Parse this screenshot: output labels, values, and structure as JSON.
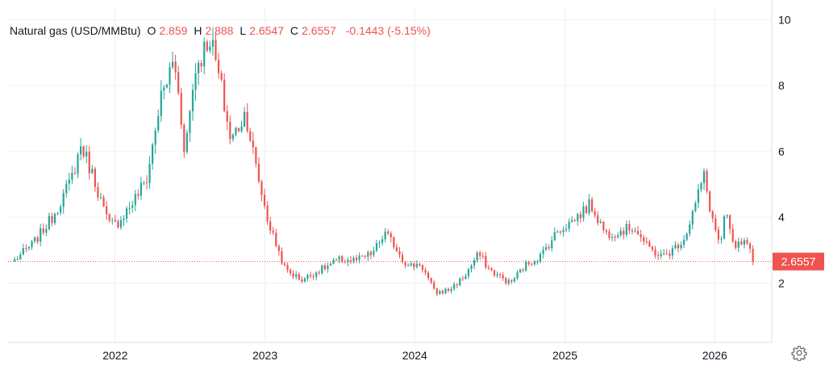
{
  "legend": {
    "title": "Natural gas (USD/MMBtu)",
    "open_label": "O",
    "open": "2.859",
    "high_label": "H",
    "high": "2.888",
    "low_label": "L",
    "low": "2.6547",
    "close_label": "C",
    "close": "2.6557",
    "change": "-0.1443 (-5.15%)"
  },
  "price_label": "2.6557",
  "colors": {
    "up": "#26a69a",
    "down": "#ef5350",
    "grid": "#eef0f3",
    "text": "#131722"
  },
  "icons": {
    "settings": "gear-icon"
  },
  "chart_data": {
    "type": "candlestick",
    "title": "Natural gas (USD/MMBtu)",
    "current_price": 2.6557,
    "xlim": [
      "2021-04-15",
      "2026-05-20"
    ],
    "x_ticks": [
      "2022",
      "2023",
      "2024",
      "2025",
      "2026"
    ],
    "y_ticks": [
      2,
      4,
      6,
      8,
      10
    ],
    "ylim": [
      0.2,
      10.35
    ],
    "grid": true,
    "anchors": [
      [
        "2021-05-01",
        2.7
      ],
      [
        "2021-06-15",
        3.2
      ],
      [
        "2021-08-01",
        4.0
      ],
      [
        "2021-09-15",
        5.1
      ],
      [
        "2021-10-10",
        6.2
      ],
      [
        "2021-11-10",
        5.2
      ],
      [
        "2021-12-15",
        3.8
      ],
      [
        "2022-01-05",
        3.8
      ],
      [
        "2022-02-15",
        4.5
      ],
      [
        "2022-03-20",
        5.2
      ],
      [
        "2022-04-20",
        7.5
      ],
      [
        "2022-05-25",
        8.8
      ],
      [
        "2022-06-20",
        6.0
      ],
      [
        "2022-07-15",
        8.5
      ],
      [
        "2022-08-20",
        9.5
      ],
      [
        "2022-09-15",
        8.0
      ],
      [
        "2022-10-10",
        6.3
      ],
      [
        "2022-11-15",
        7.2
      ],
      [
        "2022-12-10",
        5.5
      ],
      [
        "2023-01-10",
        3.8
      ],
      [
        "2023-02-20",
        2.4
      ],
      [
        "2023-04-01",
        2.1
      ],
      [
        "2023-05-15",
        2.4
      ],
      [
        "2023-07-01",
        2.7
      ],
      [
        "2023-08-15",
        2.7
      ],
      [
        "2023-09-20",
        2.9
      ],
      [
        "2023-10-20",
        3.5
      ],
      [
        "2023-11-10",
        3.2
      ],
      [
        "2023-12-15",
        2.5
      ],
      [
        "2024-01-15",
        2.6
      ],
      [
        "2024-02-20",
        1.7
      ],
      [
        "2024-03-25",
        1.8
      ],
      [
        "2024-05-01",
        2.2
      ],
      [
        "2024-06-05",
        2.9
      ],
      [
        "2024-07-01",
        2.4
      ],
      [
        "2024-08-20",
        2.0
      ],
      [
        "2024-10-01",
        2.6
      ],
      [
        "2024-11-01",
        2.8
      ],
      [
        "2024-12-15",
        3.6
      ],
      [
        "2025-01-20",
        3.9
      ],
      [
        "2025-03-05",
        4.4
      ],
      [
        "2025-04-10",
        3.5
      ],
      [
        "2025-05-20",
        3.6
      ],
      [
        "2025-06-20",
        3.7
      ],
      [
        "2025-07-20",
        3.1
      ],
      [
        "2025-08-25",
        2.8
      ],
      [
        "2025-09-20",
        3.0
      ],
      [
        "2025-10-20",
        3.4
      ],
      [
        "2025-11-20",
        4.6
      ],
      [
        "2025-12-05",
        5.3
      ],
      [
        "2025-12-25",
        4.0
      ],
      [
        "2026-01-15",
        3.1
      ],
      [
        "2026-01-28",
        4.2
      ],
      [
        "2026-02-15",
        3.1
      ],
      [
        "2026-03-15",
        3.2
      ],
      [
        "2026-04-10",
        2.66
      ]
    ]
  }
}
